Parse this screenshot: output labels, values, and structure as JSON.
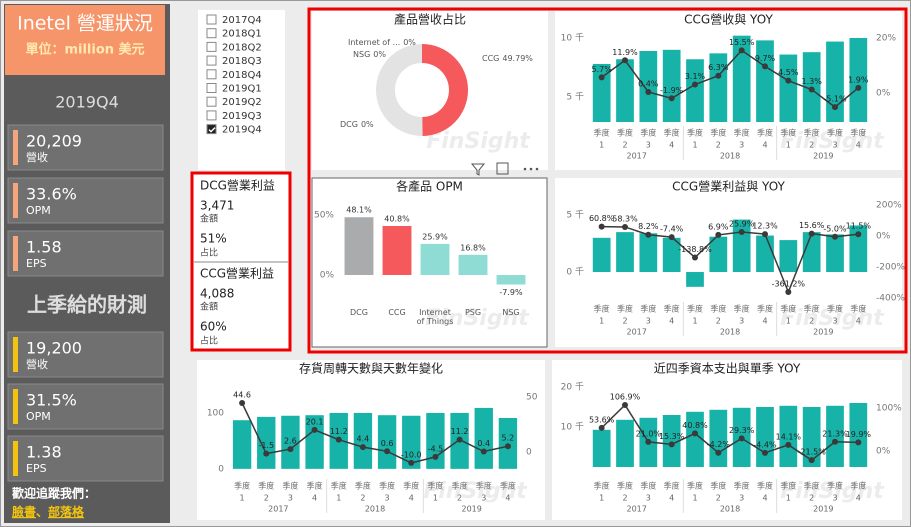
{
  "sidebar": {
    "title": "Inetel 營運狀況",
    "unit": "單位：million 美元",
    "period": "2019Q4",
    "kpis": [
      {
        "value": "20,209",
        "label": "營收"
      },
      {
        "value": "33.6%",
        "label": "OPM"
      },
      {
        "value": "1.58",
        "label": "EPS"
      }
    ],
    "forecast_title": "上季給的財測",
    "forecast": [
      {
        "value": "19,200",
        "label": "營收"
      },
      {
        "value": "31.5%",
        "label": "OPM"
      },
      {
        "value": "1.38",
        "label": "EPS"
      }
    ],
    "follow": "歡迎追蹤我們：",
    "links": [
      "臉書",
      "部落格"
    ],
    "link_separator": "、"
  },
  "slicer": {
    "items": [
      "2017Q4",
      "2018Q1",
      "2018Q2",
      "2018Q3",
      "2018Q4",
      "2019Q1",
      "2019Q2",
      "2019Q3",
      "2019Q4"
    ],
    "selected": "2019Q4"
  },
  "cards": [
    {
      "title": "DCG營業利益",
      "amount": "3,471",
      "amount_label": "金額",
      "share": "51%",
      "share_label": "占比"
    },
    {
      "title": "CCG營業利益",
      "amount": "4,088",
      "amount_label": "金額",
      "share": "60%",
      "share_label": "占比"
    }
  ],
  "watermark": "FinSight",
  "chart_data": [
    {
      "type": "donut",
      "title": "產品營收占比",
      "categories": [
        "CCG",
        "DCG",
        "NSG",
        "Internet of ..."
      ],
      "values": [
        49.79,
        0,
        0,
        0
      ],
      "value_labels": [
        "49.79%",
        "0%",
        "0%",
        "0%"
      ],
      "colors": [
        "#f5595b",
        "#b0b2b4",
        "#8fd6cf",
        "#f3df8c"
      ]
    },
    {
      "type": "combo",
      "title": "CCG營收與 YOY",
      "category_prefix": "季度",
      "categories": [
        "1",
        "2",
        "3",
        "4",
        "1",
        "2",
        "3",
        "4",
        "1",
        "2",
        "3",
        "4"
      ],
      "groups": [
        "2017",
        "2018",
        "2019"
      ],
      "series": [
        {
          "type": "bar",
          "color": "#17b3a8",
          "values": [
            7800,
            8200,
            8900,
            9000,
            8200,
            8700,
            10200,
            9800,
            8600,
            8800,
            9700,
            10000
          ]
        },
        {
          "type": "line",
          "axis": "y2",
          "color": "#3a3a3a",
          "values": [
            5.7,
            11.9,
            0.4,
            -1.9,
            3.1,
            6.3,
            15.5,
            9.7,
            4.5,
            1.3,
            -5.1,
            1.9
          ],
          "value_labels": [
            "5.7%",
            "11.9%",
            "0.4%",
            "-1.9%",
            "3.1%",
            "6.3%",
            "15.5%",
            "9.7%",
            "4.5%",
            "1.3%",
            "-5.1%",
            "1.9%"
          ]
        }
      ],
      "ylim": [
        2880,
        10680
      ],
      "yticks": [
        {
          "value": 5000,
          "label": "5 千"
        },
        {
          "value": 10000,
          "label": "10 千"
        }
      ],
      "y2lim": [
        -10.5,
        22.9
      ],
      "y2ticks": [
        {
          "value": 0,
          "label": "0%"
        },
        {
          "value": 20,
          "label": "20%"
        }
      ]
    },
    {
      "type": "bar",
      "title": "各產品 OPM",
      "categories": [
        "DCG",
        "CCG",
        "Internet of Things",
        "PSG",
        "NSG"
      ],
      "values": [
        48.1,
        40.8,
        25.9,
        16.8,
        -7.9
      ],
      "value_labels": [
        "48.1%",
        "40.8%",
        "25.9%",
        "16.8%",
        "-7.9%"
      ],
      "colors": [
        "#a9abad",
        "#f5595b",
        "#8fdcd4",
        "#8fdcd4",
        "#8fdcd4"
      ],
      "ylim": [
        -12.5,
        58.3
      ],
      "yticks": [
        {
          "value": 0,
          "label": "0%"
        },
        {
          "value": 50,
          "label": "50%"
        }
      ]
    },
    {
      "type": "combo",
      "title": "CCG營業利益與 YOY",
      "category_prefix": "季度",
      "categories": [
        "1",
        "2",
        "3",
        "4",
        "1",
        "2",
        "3",
        "4",
        "1",
        "2",
        "3",
        "4"
      ],
      "groups": [
        "2017",
        "2018",
        "2019"
      ],
      "series": [
        {
          "type": "bar",
          "color": "#17b3a8",
          "values": [
            3000,
            3500,
            3400,
            3000,
            -1300,
            3100,
            4600,
            3200,
            2800,
            3500,
            3300,
            4088
          ]
        },
        {
          "type": "line",
          "axis": "y2",
          "color": "#3a3a3a",
          "values": [
            60.8,
            58.3,
            8.2,
            -7.4,
            -138.8,
            6.9,
            25.9,
            12.3,
            -361.2,
            15.6,
            -5,
            11.5
          ],
          "value_labels": [
            "60.8%",
            "58.3%",
            "8.2%",
            "-7.4%",
            "-138.8%",
            "6.9%",
            "25.9%",
            "12.3%",
            "-361.2%",
            "15.6%",
            "-5.0%",
            "11.5%"
          ]
        }
      ],
      "ylim": [
        -2280,
        5880
      ],
      "yticks": [
        {
          "value": 0,
          "label": "0 千"
        },
        {
          "value": 5000,
          "label": "5 千"
        }
      ],
      "y2lim": [
        -400,
        200
      ],
      "y2ticks": [
        {
          "value": 200,
          "label": "200%"
        },
        {
          "value": 0,
          "label": "0%"
        },
        {
          "value": -200,
          "label": "-200%"
        },
        {
          "value": -400,
          "label": "-400%"
        }
      ]
    },
    {
      "type": "combo",
      "title": "存貨周轉天數與天數年變化",
      "category_prefix": "季度",
      "categories": [
        "1",
        "2",
        "3",
        "4",
        "1",
        "2",
        "3",
        "4",
        "1",
        "2",
        "3",
        "4"
      ],
      "groups": [
        "2017",
        "2018",
        "2019"
      ],
      "series": [
        {
          "type": "bar",
          "color": "#17b3a8",
          "values": [
            87,
            93,
            95,
            96,
            100,
            100,
            96,
            95,
            100,
            100,
            109,
            91
          ]
        },
        {
          "type": "line",
          "axis": "y2",
          "color": "#3a3a3a",
          "values": [
            44.6,
            -1.5,
            2.6,
            20.1,
            11.2,
            4.4,
            0.6,
            -10,
            -4.5,
            11.2,
            0.4,
            5.2
          ],
          "value_labels": [
            "44.6",
            "-1.5",
            "2.6",
            "20.1",
            "11.2",
            "4.4",
            "0.6",
            "-10.0",
            "-4.5",
            "11.2",
            "0.4",
            "5.2"
          ]
        }
      ],
      "ylim": [
        -11,
        150
      ],
      "yticks": [
        0,
        100
      ],
      "y2lim": [
        -21,
        61
      ],
      "y2ticks": [
        0,
        50
      ]
    },
    {
      "type": "combo",
      "title": "近四季資本支出與單季 YOY",
      "category_prefix": "季度",
      "categories": [
        "1",
        "2",
        "3",
        "4",
        "1",
        "2",
        "3",
        "4",
        "1",
        "2",
        "3",
        "4"
      ],
      "groups": [
        "2017",
        "2018",
        "2019"
      ],
      "series": [
        {
          "type": "bar",
          "color": "#17b3a8",
          "values": [
            9300,
            11800,
            12300,
            13000,
            13800,
            14300,
            14800,
            15000,
            15300,
            15000,
            15300,
            16000
          ]
        },
        {
          "type": "line",
          "axis": "y2",
          "color": "#3a3a3a",
          "values": [
            53.6,
            106.9,
            21,
            15.3,
            40.8,
            -4.2,
            29.3,
            -4.4,
            14.1,
            -21.5,
            21.3,
            19.9
          ],
          "value_labels": [
            "53.6%",
            "106.9%",
            "21.0%",
            "15.3%",
            "40.8%",
            "-4.2%",
            "29.3%",
            "-4.4%",
            "14.1%",
            "-21.5%",
            "21.3%",
            "19.9%"
          ]
        }
      ],
      "ylim": [
        -2000,
        21000
      ],
      "yticks": [
        {
          "value": 10000,
          "label": "10 千"
        },
        {
          "value": 20000,
          "label": "20 千"
        }
      ],
      "y2lim": [
        -56,
        158
      ],
      "y2ticks": [
        {
          "value": 0,
          "label": "0%"
        },
        {
          "value": 100,
          "label": "100%"
        }
      ]
    }
  ]
}
